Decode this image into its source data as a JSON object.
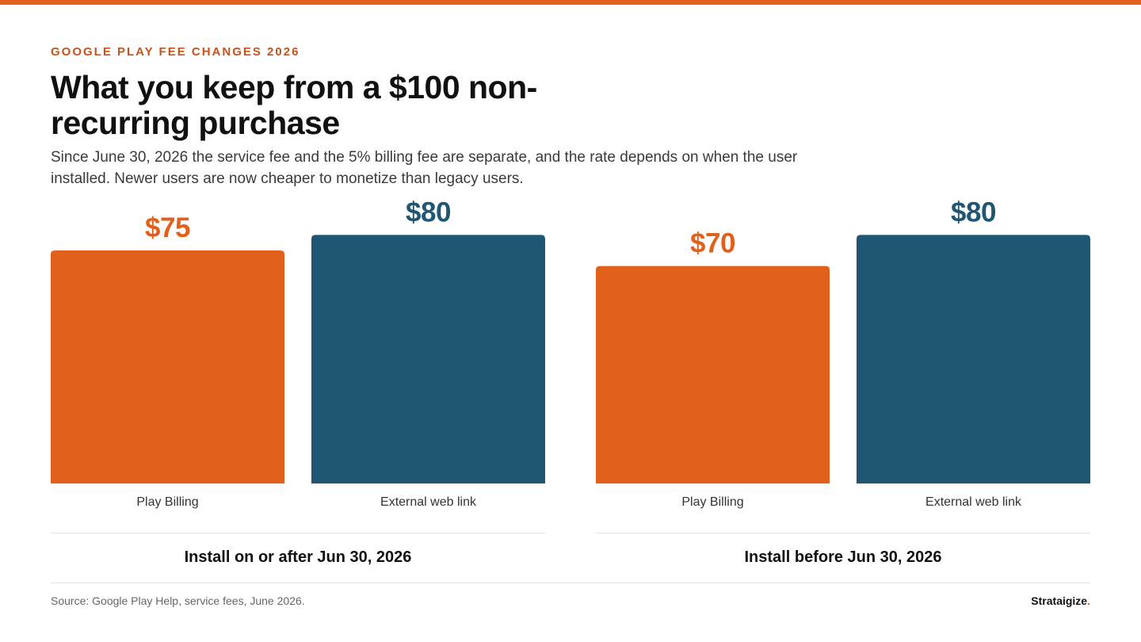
{
  "eyebrow": "GOOGLE PLAY FEE CHANGES 2026",
  "title": "What you keep from a $100 non-recurring purchase",
  "subtitle": "Since June 30, 2026 the service fee and the 5% billing fee are separate, and the rate depends on when the user installed. Newer users are now cheaper to monetize than legacy users.",
  "source": "Source: Google Play Help, service fees, June 2026.",
  "brand": {
    "name": "Strataigize",
    "dot": "."
  },
  "colors": {
    "accent": "#e0601c",
    "play_billing": "#e0601c",
    "external": "#1f5673"
  },
  "chart_data": {
    "type": "bar",
    "ylim": [
      0,
      100
    ],
    "grid": false,
    "groups": [
      {
        "name": "Install on or after Jun 30, 2026",
        "bars": [
          {
            "category": "Play Billing",
            "value": 75,
            "label": "$75",
            "color": "#e0601c"
          },
          {
            "category": "External web link",
            "value": 80,
            "label": "$80",
            "color": "#1f5673"
          }
        ]
      },
      {
        "name": "Install before Jun 30, 2026",
        "bars": [
          {
            "category": "Play Billing",
            "value": 70,
            "label": "$70",
            "color": "#e0601c"
          },
          {
            "category": "External web link",
            "value": 80,
            "label": "$80",
            "color": "#1f5673"
          }
        ]
      }
    ]
  }
}
